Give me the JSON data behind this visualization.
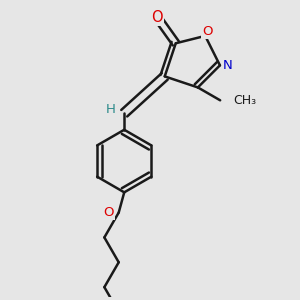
{
  "background_color": "#e6e6e6",
  "bond_color": "#1a1a1a",
  "bond_width": 1.8,
  "atom_colors": {
    "O": "#dd0000",
    "N": "#0000cc",
    "H": "#2e8b8b",
    "C": "#1a1a1a"
  },
  "figsize": [
    3.0,
    3.0
  ],
  "dpi": 100,
  "xlim": [
    -2.5,
    3.5
  ],
  "ylim": [
    -5.5,
    2.5
  ]
}
